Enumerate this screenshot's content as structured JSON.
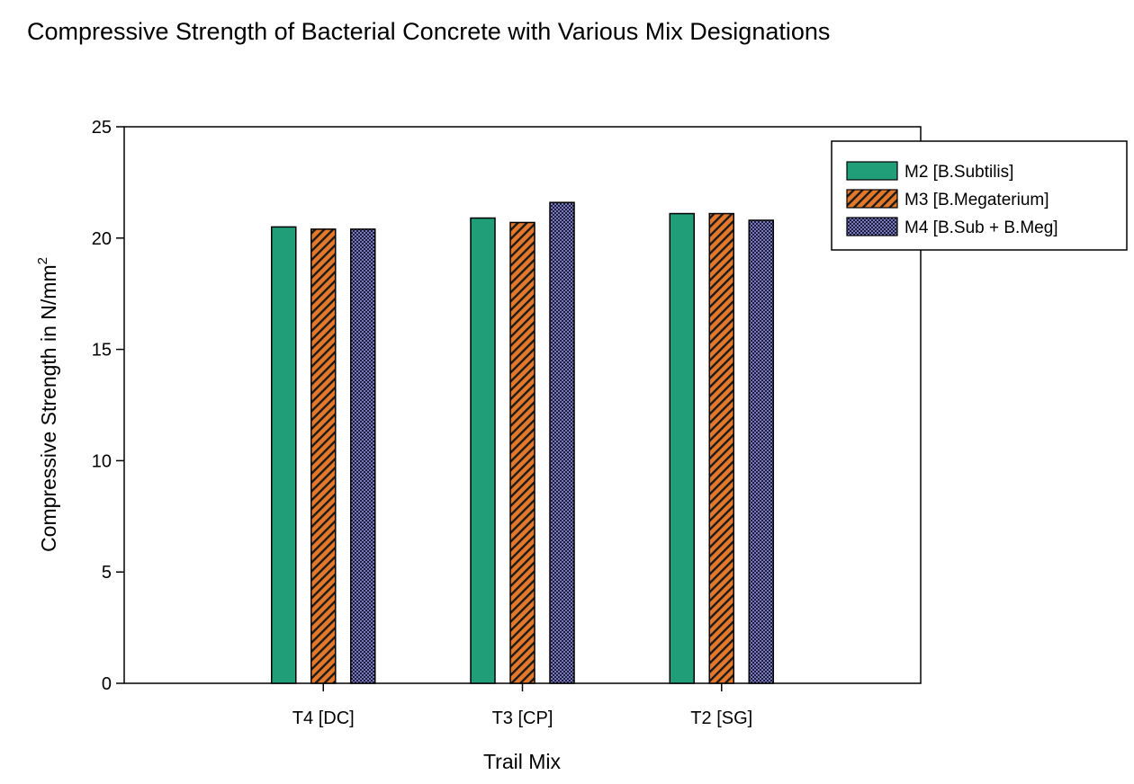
{
  "chart_data": {
    "type": "bar",
    "title": "Compressive Strength of Bacterial Concrete with Various Mix Designations",
    "xlabel": "Trail Mix",
    "ylabel": "Compressive Strength in N/mm",
    "ylabel_superscript": "2",
    "categories": [
      "T4 [DC]",
      "T3 [CP]",
      "T2 [SG]"
    ],
    "ylim": [
      0,
      25
    ],
    "yticks": [
      "0",
      "5",
      "10",
      "15",
      "20",
      "25"
    ],
    "grid": false,
    "legend_position": "top-right",
    "series": [
      {
        "name": "M2 [B.Subtilis]",
        "values": [
          20.5,
          20.9,
          21.1
        ],
        "color": "#1f9e78",
        "pattern": "solid"
      },
      {
        "name": "M3 [B.Megaterium]",
        "values": [
          20.4,
          20.7,
          21.1
        ],
        "color": "#e4782a",
        "pattern": "diagonal-hatch"
      },
      {
        "name": "M4 [B.Sub + B.Meg]",
        "values": [
          20.4,
          21.6,
          20.8
        ],
        "color": "#7272b4",
        "pattern": "crosshatch"
      }
    ]
  }
}
